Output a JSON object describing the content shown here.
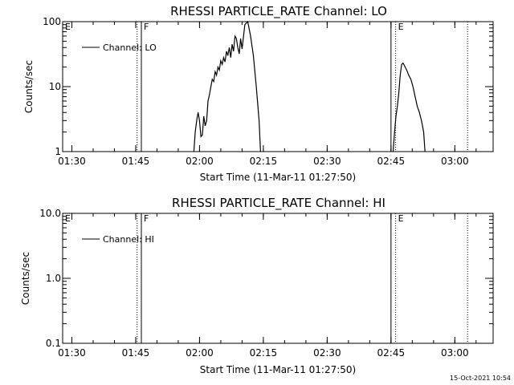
{
  "timestamp": "15-Oct-2021 10:54",
  "chart_data": [
    {
      "type": "line",
      "title": "RHESSI PARTICLE_RATE Channel: LO",
      "xlabel": "Start Time (11-Mar-11 01:27:50)",
      "ylabel": "Counts/sec",
      "yscale": "log",
      "ylim": [
        1,
        100
      ],
      "xlim": [
        "01:27:50",
        "03:09:00"
      ],
      "x_ticks": [
        "01:30",
        "01:45",
        "02:00",
        "02:15",
        "02:30",
        "02:45",
        "03:00"
      ],
      "y_ticks": [
        "1",
        "10",
        "100"
      ],
      "legend": "top-left",
      "series": [
        {
          "name": "Channel: LO",
          "x": [
            "01:58:40",
            "01:59:00",
            "01:59:20",
            "01:59:40",
            "02:00:00",
            "02:00:20",
            "02:00:40",
            "02:01:00",
            "02:01:20",
            "02:01:40",
            "02:02:00",
            "02:02:20",
            "02:02:40",
            "02:03:00",
            "02:03:20",
            "02:03:40",
            "02:04:00",
            "02:04:20",
            "02:04:40",
            "02:05:00",
            "02:05:20",
            "02:05:40",
            "02:06:00",
            "02:06:20",
            "02:06:40",
            "02:07:00",
            "02:07:20",
            "02:07:40",
            "02:08:00",
            "02:08:20",
            "02:08:40",
            "02:09:00",
            "02:09:20",
            "02:09:40",
            "02:10:00",
            "02:10:40",
            "02:11:20",
            "02:12:00",
            "02:12:40",
            "02:13:20",
            "02:14:00",
            "02:14:20"
          ],
          "y": [
            1.0,
            2.0,
            3.0,
            4.0,
            3.0,
            1.7,
            1.8,
            3.5,
            2.5,
            3.0,
            6.0,
            7.5,
            10,
            13,
            12,
            17,
            15,
            20,
            18,
            25,
            22,
            28,
            24,
            35,
            30,
            40,
            28,
            45,
            35,
            60,
            55,
            40,
            32,
            55,
            38,
            90,
            100,
            60,
            30,
            10,
            3,
            1.0
          ]
        },
        {
          "name": "Channel: LO",
          "x": [
            "02:45:30",
            "02:45:50",
            "02:46:10",
            "02:46:30",
            "02:46:50",
            "02:47:10",
            "02:47:30",
            "02:47:50",
            "02:48:10",
            "02:48:30",
            "02:48:50",
            "02:49:10",
            "02:49:40",
            "02:50:10",
            "02:50:40",
            "02:51:10",
            "02:51:40",
            "02:52:10",
            "02:52:40",
            "02:53:00"
          ],
          "y": [
            1.0,
            2.0,
            3.5,
            5.0,
            8.0,
            15,
            22,
            23,
            21,
            19,
            17,
            15,
            13,
            10,
            7,
            5,
            4,
            3,
            2,
            1.0
          ]
        }
      ],
      "markers": [
        {
          "label": "E",
          "time": "01:27:50",
          "style": "solid"
        },
        {
          "label": "",
          "time": "01:45:20",
          "style": "dotted"
        },
        {
          "label": "F",
          "time": "01:46:20",
          "style": "solid"
        },
        {
          "label": "",
          "time": "02:45:00",
          "style": "solid"
        },
        {
          "label": "E",
          "time": "02:46:05",
          "style": "dotted"
        },
        {
          "label": "",
          "time": "03:03:00",
          "style": "dotted"
        }
      ]
    },
    {
      "type": "line",
      "title": "RHESSI PARTICLE_RATE Channel: HI",
      "xlabel": "Start Time (11-Mar-11 01:27:50)",
      "ylabel": "Counts/sec",
      "yscale": "log",
      "ylim": [
        0.1,
        10.0
      ],
      "xlim": [
        "01:27:50",
        "03:09:00"
      ],
      "x_ticks": [
        "01:30",
        "01:45",
        "02:00",
        "02:15",
        "02:30",
        "02:45",
        "03:00"
      ],
      "y_ticks": [
        "0.1",
        "1.0",
        "10.0"
      ],
      "legend": "top-left",
      "series": [
        {
          "name": "Channel: HI",
          "x": [],
          "y": []
        }
      ],
      "markers": [
        {
          "label": "E",
          "time": "01:27:50",
          "style": "solid"
        },
        {
          "label": "",
          "time": "01:45:20",
          "style": "dotted"
        },
        {
          "label": "F",
          "time": "01:46:20",
          "style": "solid"
        },
        {
          "label": "",
          "time": "02:45:00",
          "style": "solid"
        },
        {
          "label": "E",
          "time": "02:46:05",
          "style": "dotted"
        },
        {
          "label": "",
          "time": "03:03:00",
          "style": "dotted"
        }
      ]
    }
  ]
}
